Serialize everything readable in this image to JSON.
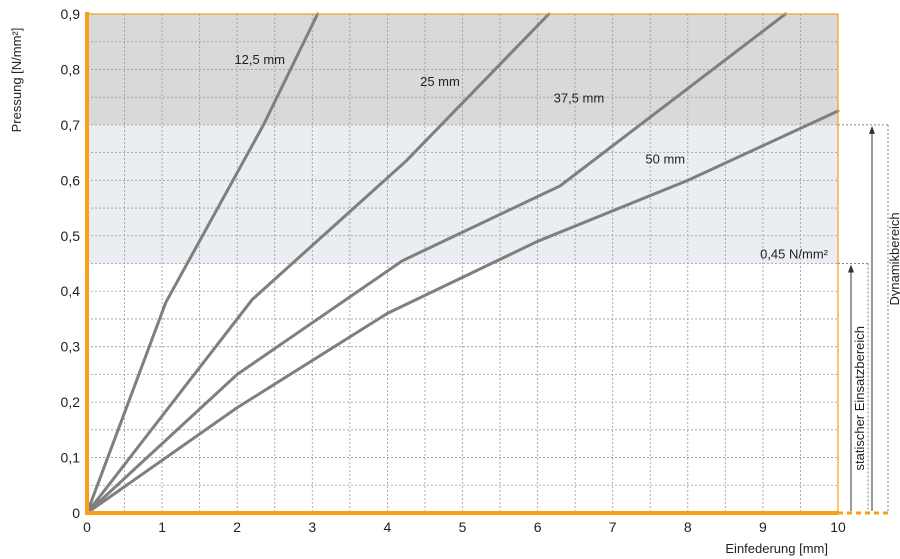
{
  "chart_data": {
    "type": "line",
    "xlabel": "Einfederung [mm]",
    "ylabel": "Pressung [N/mm²]",
    "xlim": [
      0,
      10
    ],
    "ylim": [
      0,
      0.9
    ],
    "x_ticks": [
      0,
      1,
      2,
      3,
      4,
      5,
      6,
      7,
      8,
      9,
      10
    ],
    "y_ticks": [
      0,
      0.1,
      0.2,
      0.3,
      0.4,
      0.5,
      0.6,
      0.7,
      0.8,
      0.9
    ],
    "x_tick_labels": [
      "0",
      "1",
      "2",
      "3",
      "4",
      "5",
      "6",
      "7",
      "8",
      "9",
      "10"
    ],
    "y_tick_labels": [
      "0",
      "0,1",
      "0,2",
      "0,3",
      "0,4",
      "0,5",
      "0,6",
      "0,7",
      "0,8",
      "0,9"
    ],
    "grid": true,
    "colors": {
      "axis": "#f7a11a",
      "curve": "#7f7f7f",
      "band_dark": "#d9d9d9",
      "band_light": "#eaedf1",
      "grid": "#9a9a9a"
    },
    "bands": [
      {
        "from": 0.7,
        "to": 0.9,
        "color": "#d9d9d9"
      },
      {
        "from": 0.45,
        "to": 0.7,
        "color": "#eaedf1"
      }
    ],
    "series": [
      {
        "name": "12,5 mm",
        "x": [
          0,
          1.05,
          2.35,
          3.07
        ],
        "y": [
          0,
          0.38,
          0.7,
          0.9
        ]
      },
      {
        "name": "25 mm",
        "x": [
          0,
          2.2,
          4.25,
          6.15
        ],
        "y": [
          0,
          0.385,
          0.635,
          0.9
        ]
      },
      {
        "name": "37,5 mm",
        "x": [
          0,
          2,
          4.2,
          6.3,
          9.3
        ],
        "y": [
          0,
          0.25,
          0.455,
          0.59,
          0.9
        ]
      },
      {
        "name": "50 mm",
        "x": [
          0,
          2,
          4,
          6,
          8,
          10
        ],
        "y": [
          0,
          0.19,
          0.36,
          0.49,
          0.6,
          0.725
        ]
      }
    ],
    "series_labels": [
      {
        "text": "12,5 mm",
        "x": 2.3,
        "y": 0.81
      },
      {
        "text": "25 mm",
        "x": 4.7,
        "y": 0.77
      },
      {
        "text": "37,5 mm",
        "x": 6.55,
        "y": 0.74
      },
      {
        "text": "50 mm",
        "x": 7.7,
        "y": 0.63
      }
    ],
    "annotations": {
      "threshold_label": "0,45 N/mm²",
      "threshold_value": 0.45,
      "dynamic_top": 0.7,
      "static_range_label": "statischer Einsatzbereich",
      "dynamic_range_label": "Dynamikbereich"
    }
  }
}
